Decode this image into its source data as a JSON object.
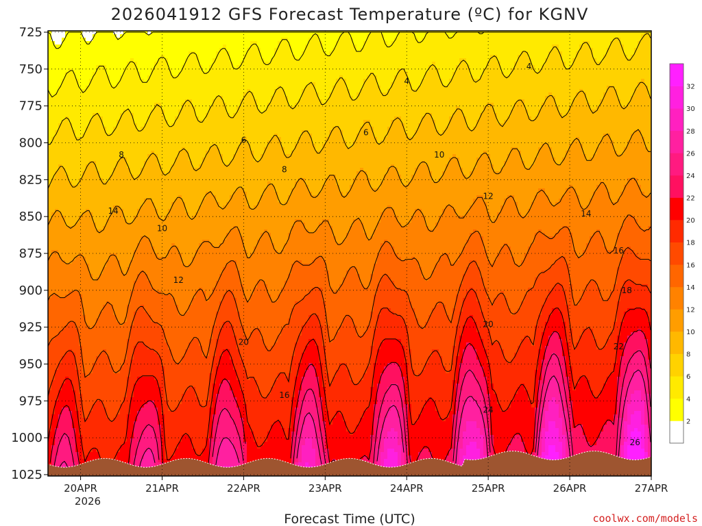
{
  "chart_data": {
    "type": "heatmap",
    "title": "2026041912 GFS Forecast Temperature (ºC) for KGNV",
    "xlabel": "Forecast Time (UTC)",
    "ylabel": "",
    "y_ticks": [
      "725",
      "750",
      "775",
      "800",
      "825",
      "850",
      "875",
      "900",
      "925",
      "950",
      "975",
      "1000",
      "1025"
    ],
    "y_range": [
      725,
      1025
    ],
    "x_ticks": [
      "20APR",
      "21APR",
      "22APR",
      "23APR",
      "24APR",
      "25APR",
      "26APR",
      "27APR"
    ],
    "x_range_days": [
      -0.4,
      7.0
    ],
    "x_year_label": "2026",
    "colorbar": {
      "levels": [
        2,
        4,
        6,
        8,
        10,
        12,
        14,
        16,
        18,
        20,
        22,
        24,
        26,
        28,
        30,
        32
      ],
      "colors": [
        "#ffffff",
        "#ffff00",
        "#ffea00",
        "#ffd200",
        "#ffb800",
        "#ff9d00",
        "#ff8200",
        "#ff6600",
        "#ff4a00",
        "#ff2a00",
        "#ff0000",
        "#ff1060",
        "#ff1a80",
        "#ff20a0",
        "#ff20c0",
        "#ff20e0",
        "#ff20ff"
      ]
    },
    "contour_labels": [
      "2",
      "4",
      "6",
      "8",
      "10",
      "12",
      "14",
      "16",
      "18",
      "20",
      "22",
      "24",
      "26"
    ],
    "surface_color": "#9e5530",
    "grid": true
  },
  "credit": "coolwx.com/models"
}
